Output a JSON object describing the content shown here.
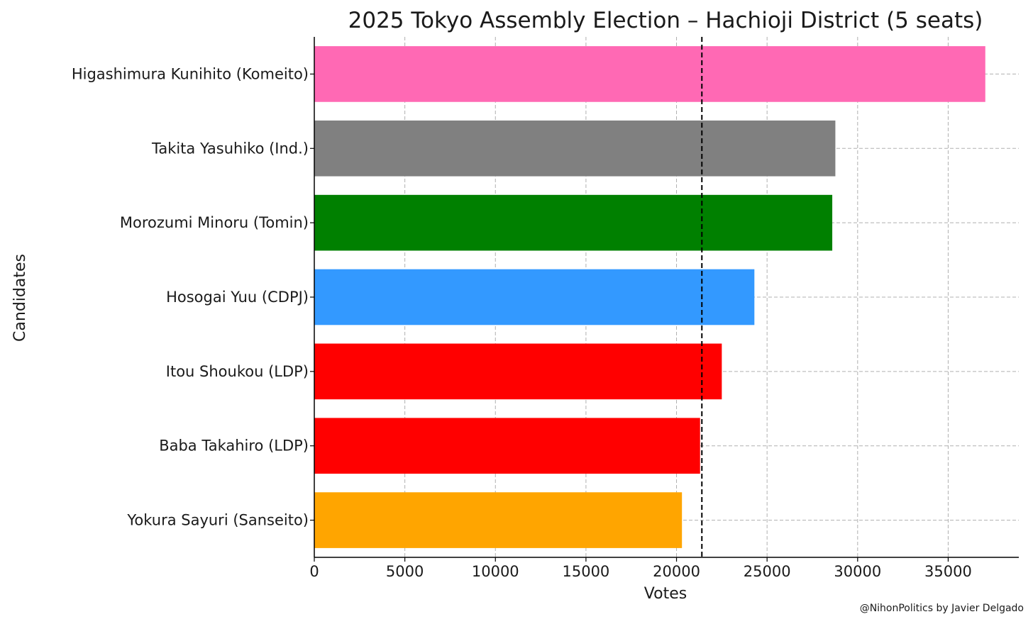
{
  "chart_data": {
    "type": "bar",
    "orientation": "horizontal",
    "title": "2025 Tokyo Assembly Election – Hachioji District (5 seats)",
    "xlabel": "Votes",
    "ylabel": "Candidates",
    "xlim": [
      0,
      38900
    ],
    "xticks": [
      0,
      5000,
      10000,
      15000,
      20000,
      25000,
      30000,
      35000
    ],
    "grid": true,
    "categories": [
      "Higashimura Kunihito (Komeito)",
      "Takita Yasuhiko (Ind.)",
      "Morozumi Minoru (Tomin)",
      "Hosogai Yuu (CDPJ)",
      "Itou Shoukou (LDP)",
      "Baba Takahiro (LDP)",
      "Yokura Sayuri (Sanseito)"
    ],
    "values": [
      37050,
      28770,
      28600,
      24300,
      22500,
      21300,
      20300
    ],
    "colors": [
      "#ff69b4",
      "#808080",
      "#008000",
      "#3399ff",
      "#ff0000",
      "#ff0000",
      "#ffa500"
    ],
    "threshold_line": {
      "value": 21400,
      "style": "dashed",
      "color": "#000000"
    }
  },
  "credit": "@NihonPolitics by Javier Delgado"
}
